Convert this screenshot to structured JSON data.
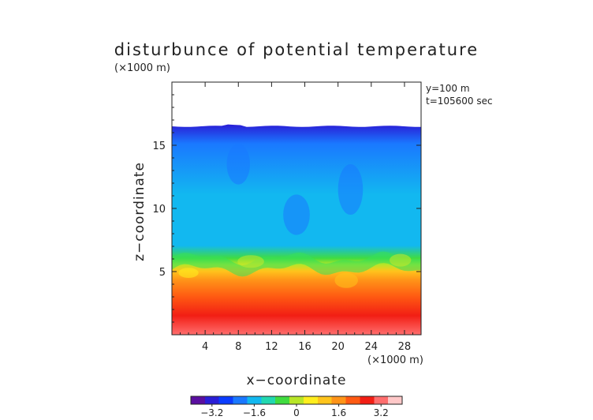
{
  "chart_data": {
    "type": "heatmap",
    "title": "disturbunce of potential temperature",
    "y_unit_label": "(×1000 m)",
    "x_unit_label": "(×1000 m)",
    "xlabel": "x−coordinate",
    "ylabel": "z−coordinate",
    "annotations": [
      "y=100 m",
      "t=105600 sec"
    ],
    "xlim": [
      0,
      30
    ],
    "ylim": [
      0,
      20
    ],
    "x_ticks": [
      4,
      8,
      12,
      16,
      20,
      24,
      28
    ],
    "y_ticks": [
      5,
      10,
      15
    ],
    "x_tick_labels": [
      "4",
      "8",
      "12",
      "16",
      "20",
      "24",
      "28"
    ],
    "y_tick_labels": [
      "5",
      "10",
      "15"
    ],
    "model_top_km": 16.5,
    "field_bands_km": [
      {
        "z": 0.0,
        "value": 3.0
      },
      {
        "z": 1.5,
        "value": 2.6
      },
      {
        "z": 3.0,
        "value": 2.0
      },
      {
        "z": 4.3,
        "value": 1.4
      },
      {
        "z": 5.0,
        "value": 0.9
      },
      {
        "z": 5.5,
        "value": 0.2
      },
      {
        "z": 6.0,
        "value": -0.8
      },
      {
        "z": 7.0,
        "value": -1.6
      },
      {
        "z": 11.0,
        "value": -1.8
      },
      {
        "z": 15.0,
        "value": -2.2
      },
      {
        "z": 16.5,
        "value": -3.0
      }
    ],
    "colorbar": {
      "range": [
        -4.0,
        4.0
      ],
      "ticks": [
        -3.2,
        -1.6,
        0,
        1.6,
        3.2
      ],
      "tick_labels": [
        "−3.2",
        "−1.6",
        "0",
        "1.6",
        "3.2"
      ],
      "colors": [
        "#5a0fa0",
        "#2a1ed6",
        "#0a3cff",
        "#1a78ff",
        "#12b8f0",
        "#22d8b0",
        "#40dc40",
        "#b8e628",
        "#ffee1e",
        "#ffc41c",
        "#ff9418",
        "#ff5a12",
        "#f21e14",
        "#ff6e6e",
        "#ffc8c8"
      ]
    }
  }
}
